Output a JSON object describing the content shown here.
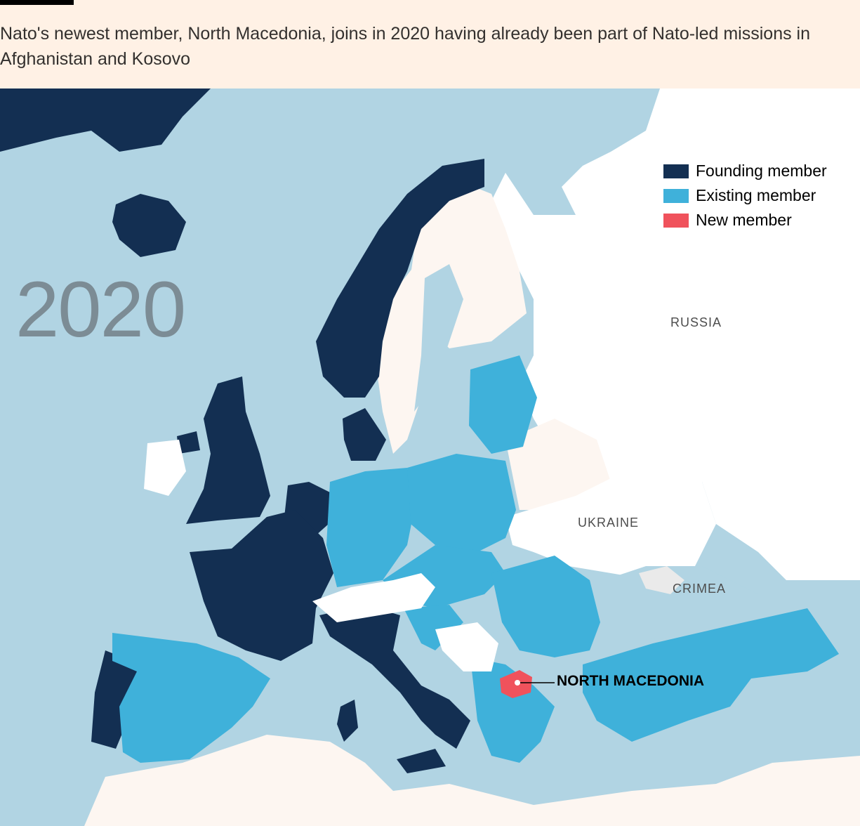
{
  "caption": "Nato's newest member, North Macedonia, joins in 2020 having already been part of Nato-led missions in Afghanistan and Kosovo",
  "year": "2020",
  "legend": [
    {
      "label": "Founding member",
      "color": "#132f52"
    },
    {
      "label": "Existing member",
      "color": "#3fb1da"
    },
    {
      "label": "New member",
      "color": "#f0525c"
    }
  ],
  "labels": {
    "russia": "RUSSIA",
    "ukraine": "UKRAINE",
    "crimea": "CRIMEA",
    "north_macedonia": "NORTH MACEDONIA"
  },
  "colors": {
    "sea": "#b1d4e3",
    "non_member_land": "#ffffff",
    "other_land": "#fdf6f1",
    "founding": "#132f52",
    "existing": "#3fb1da",
    "new": "#f0525c"
  }
}
